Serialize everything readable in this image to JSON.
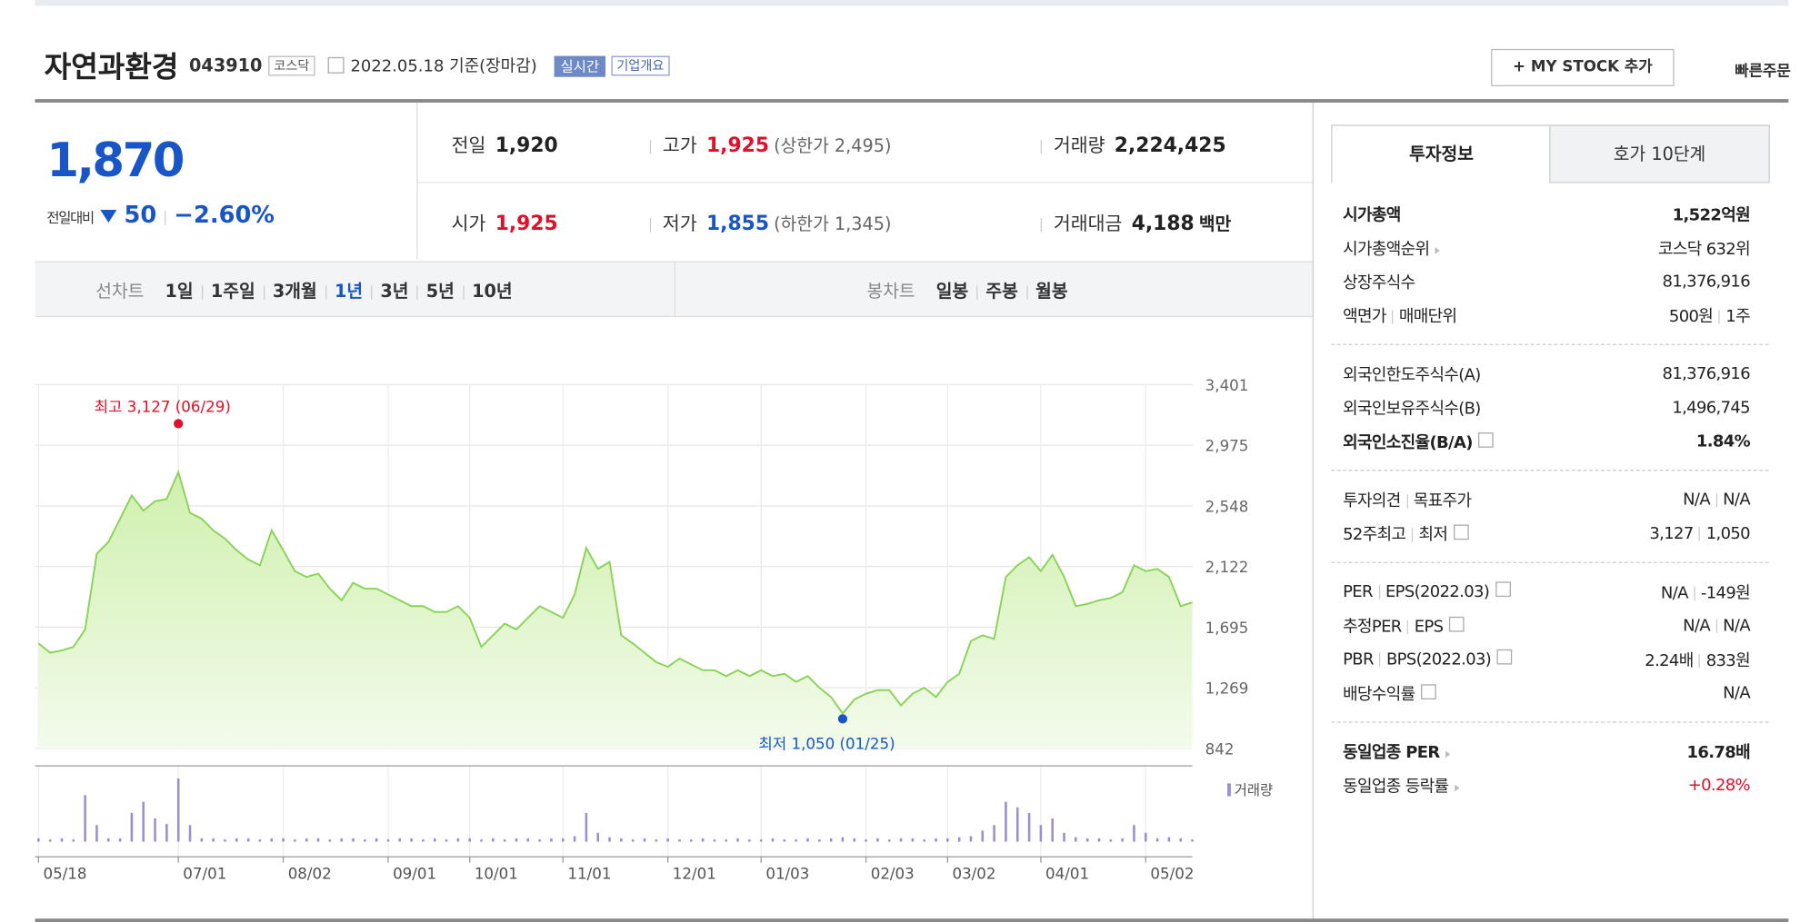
{
  "header": {
    "name": "자연과환경",
    "code": "043910",
    "market": "코스닥",
    "date": "2022.05.18 기준(장마감)",
    "realtime": "실시간",
    "overview": "기업개요",
    "mystock": "+ MY STOCK 추가",
    "quick_order": "빠른주문"
  },
  "price": {
    "now": "1,870",
    "change_label": "전일대비",
    "change": "50",
    "rate": "−2.60%"
  },
  "info": [
    [
      {
        "label": "전일",
        "value": "1,920"
      },
      {
        "label": "고가",
        "value": "1,925",
        "extra": "(상한가 2,495)",
        "red": true
      },
      {
        "label": "거래량",
        "value": "2,224,425"
      }
    ],
    [
      {
        "label": "시가",
        "value": "1,925",
        "red": true
      },
      {
        "label": "저가",
        "value": "1,855",
        "extra": "(하한가 1,345)",
        "blue": true
      },
      {
        "label": "거래대금",
        "value": "4,188",
        "extra": "백만"
      }
    ]
  ],
  "tabs": {
    "line_label": "선차트",
    "line": [
      "1일",
      "1주일",
      "3개월",
      "1년",
      "3년",
      "5년",
      "10년"
    ],
    "selected": 3,
    "candle_label": "봉차트",
    "candle": [
      "일봉",
      "주봉",
      "월봉"
    ]
  },
  "chart": {
    "type": "line",
    "color": "#88d455",
    "values": [
      1580,
      1515,
      1531,
      1556,
      1679,
      2212,
      2294,
      2458,
      2622,
      2515,
      2581,
      2597,
      2786,
      2499,
      2458,
      2376,
      2318,
      2236,
      2171,
      2130,
      2376,
      2236,
      2089,
      2048,
      2072,
      1966,
      1884,
      2007,
      1966,
      1966,
      1925,
      1884,
      1843,
      1843,
      1802,
      1802,
      1843,
      1761,
      1556,
      1638,
      1720,
      1679,
      1761,
      1843,
      1802,
      1761,
      1925,
      2253,
      2105,
      2154,
      1638,
      1580,
      1515,
      1449,
      1416,
      1474,
      1433,
      1392,
      1392,
      1351,
      1392,
      1351,
      1392,
      1351,
      1367,
      1310,
      1351,
      1269,
      1203,
      1088,
      1186,
      1227,
      1252,
      1252,
      1145,
      1227,
      1269,
      1203,
      1310,
      1367,
      1597,
      1638,
      1613,
      2048,
      2130,
      2187,
      2089,
      2204,
      2048,
      1843,
      1859,
      1884,
      1900,
      1941,
      2130,
      2089,
      2105,
      2048,
      1843,
      1870
    ],
    "ylim": [
      842,
      3401
    ],
    "yticks": [
      {
        "value": 3401,
        "label": "3,401"
      },
      {
        "value": 2975,
        "label": "2,975"
      },
      {
        "value": 2548,
        "label": "2,548"
      },
      {
        "value": 2122,
        "label": "2,122"
      },
      {
        "value": 1695,
        "label": "1,695"
      },
      {
        "value": 1269,
        "label": "1,269"
      },
      {
        "value": 842,
        "label": "842"
      }
    ],
    "xlim": [
      0,
      99
    ],
    "xticks": [
      {
        "value": 0,
        "label": "05/18"
      },
      {
        "value": 12,
        "label": "07/01"
      },
      {
        "value": 21,
        "label": "08/02"
      },
      {
        "value": 30,
        "label": "09/01"
      },
      {
        "value": 37,
        "label": "10/01"
      },
      {
        "value": 45,
        "label": "11/01"
      },
      {
        "value": 54,
        "label": "12/01"
      },
      {
        "value": 62,
        "label": "01/03"
      },
      {
        "value": 71,
        "label": "02/03"
      },
      {
        "value": 78,
        "label": "03/02"
      },
      {
        "value": 86,
        "label": "04/01"
      },
      {
        "value": 95,
        "label": "05/02"
      }
    ],
    "high": {
      "x": 12,
      "value": 3127,
      "label": "최고 3,127 (06/29)"
    },
    "low": {
      "x": 69,
      "value": 1050,
      "label": "최저 1,050 (01/25)"
    },
    "volume": {
      "name": "거래량",
      "color": "#9b8fd0",
      "vlim": [
        0,
        6000000
      ],
      "values": [
        300000,
        200000,
        300000,
        200000,
        4200000,
        1500000,
        300000,
        300000,
        2600000,
        3600000,
        2100000,
        1600000,
        5700000,
        1500000,
        300000,
        300000,
        200000,
        300000,
        300000,
        200000,
        300000,
        300000,
        200000,
        300000,
        300000,
        200000,
        300000,
        300000,
        200000,
        300000,
        200000,
        300000,
        300000,
        200000,
        300000,
        200000,
        300000,
        300000,
        200000,
        300000,
        200000,
        300000,
        300000,
        200000,
        300000,
        300000,
        500000,
        2600000,
        800000,
        400000,
        300000,
        200000,
        300000,
        200000,
        300000,
        200000,
        200000,
        300000,
        200000,
        200000,
        300000,
        200000,
        200000,
        300000,
        200000,
        200000,
        300000,
        200000,
        300000,
        400000,
        300000,
        200000,
        300000,
        200000,
        300000,
        300000,
        200000,
        300000,
        300000,
        400000,
        500000,
        1000000,
        1500000,
        3600000,
        3100000,
        2600000,
        1500000,
        2100000,
        800000,
        400000,
        300000,
        300000,
        200000,
        300000,
        1500000,
        800000,
        300000,
        400000,
        300000,
        200000
      ]
    }
  },
  "panel": {
    "tabs": [
      "투자정보",
      "호가 10단계"
    ],
    "sections": [
      [
        {
          "label": [
            "시가총액"
          ],
          "value": [
            "1,522억원"
          ],
          "bold": true
        },
        {
          "label": [
            "시가총액순위"
          ],
          "value": [
            "코스닥 632위"
          ],
          "arrow": true
        },
        {
          "label": [
            "상장주식수"
          ],
          "value": [
            "81,376,916"
          ]
        },
        {
          "label": [
            "액면가",
            "매매단위"
          ],
          "value": [
            "500원",
            "1주"
          ]
        }
      ],
      [
        {
          "label": [
            "외국인한도주식수(A)"
          ],
          "value": [
            "81,376,916"
          ]
        },
        {
          "label": [
            "외국인보유주식수(B)"
          ],
          "value": [
            "1,496,745"
          ]
        },
        {
          "label": [
            "외국인소진율(B/A)"
          ],
          "value": [
            "1.84%"
          ],
          "bold": true,
          "help": true
        }
      ],
      [
        {
          "label": [
            "투자의견",
            "목표주가"
          ],
          "value": [
            "N/A",
            "N/A"
          ]
        },
        {
          "label": [
            "52주최고",
            "최저"
          ],
          "value": [
            "3,127",
            "1,050"
          ],
          "help": true
        }
      ],
      [
        {
          "label": [
            "PER",
            "EPS(2022.03)"
          ],
          "value": [
            "N/A",
            "-149원"
          ],
          "help": true
        },
        {
          "label": [
            "추정PER",
            "EPS"
          ],
          "value": [
            "N/A",
            "N/A"
          ],
          "help": true
        },
        {
          "label": [
            "PBR",
            "BPS(2022.03)"
          ],
          "value": [
            "2.24배",
            "833원"
          ],
          "help": true
        },
        {
          "label": [
            "배당수익률"
          ],
          "value": [
            "N/A"
          ],
          "help": true
        }
      ],
      [
        {
          "label": [
            "동일업종 PER"
          ],
          "value": [
            "16.78배"
          ],
          "bold": true,
          "arrow": true
        },
        {
          "label": [
            "동일업종 등락률"
          ],
          "value": [
            "+0.28%"
          ],
          "arrow": true,
          "up": true
        }
      ]
    ]
  }
}
